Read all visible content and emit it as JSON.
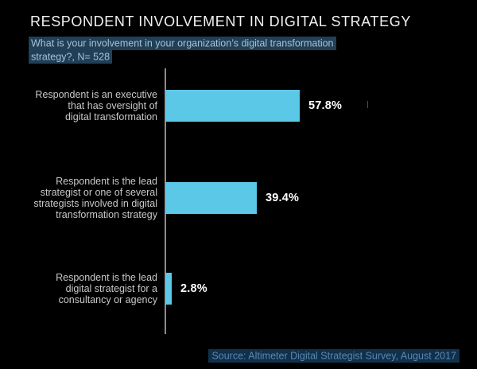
{
  "title": "RESPONDENT INVOLVEMENT IN DIGITAL STRATEGY",
  "subtitle": "What is your involvement in your organization’s digital transformation strategy?, N= 528",
  "source": "Source: Altimeter Digital Strategist Survey, August 2017",
  "colors": {
    "background": "#000000",
    "bar_fill": "#5BC8E8",
    "title_text": "#F2F2F2",
    "category_text": "#C8C8C8",
    "value_text": "#FFFFFF",
    "axis_line": "#8C8C8C",
    "subtitle_text": "#A6C0D4",
    "subtitle_highlight": "#204057",
    "source_text": "#5B87AD",
    "source_highlight": "#10304B"
  },
  "chart_data": {
    "type": "bar",
    "orientation": "horizontal",
    "title": "RESPONDENT INVOLVEMENT IN DIGITAL STRATEGY",
    "subtitle": "What is your involvement in your organization’s digital transformation strategy?, N= 528",
    "categories": [
      "Respondent is an executive\nthat has oversight of\ndigital transformation",
      "Respondent is the lead\nstrategist or one of several\nstrategists involved in digital\ntransformation strategy",
      "Respondent is the lead\ndigital strategist for a\nconsultancy or agency"
    ],
    "values": [
      57.8,
      39.4,
      2.8
    ],
    "value_labels": [
      "57.8%",
      "39.4%",
      "2.8%"
    ],
    "xlabel": "",
    "ylabel": "",
    "xlim": [
      0,
      100
    ],
    "grid": false,
    "legend": false,
    "source": "Source: Altimeter Digital Strategist Survey, August 2017"
  }
}
